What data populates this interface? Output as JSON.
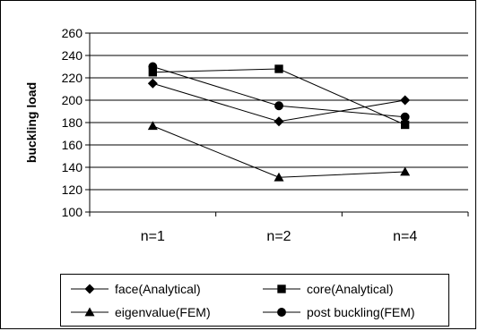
{
  "chart_data": {
    "type": "line",
    "categories": [
      "n=1",
      "n=2",
      "n=4"
    ],
    "ylabel": "buckling load",
    "xlabel": "",
    "ylim": [
      100,
      260
    ],
    "yticks": [
      100,
      120,
      140,
      160,
      180,
      200,
      220,
      240,
      260
    ],
    "grid": "horizontal",
    "legend_position": "bottom",
    "series": [
      {
        "name": "face(Analytical)",
        "marker": "diamond",
        "values": [
          215,
          181,
          200
        ]
      },
      {
        "name": "core(Analytical)",
        "marker": "square",
        "values": [
          225,
          228,
          178
        ]
      },
      {
        "name": "eigenvalue(FEM)",
        "marker": "triangle",
        "values": [
          177,
          131,
          136
        ]
      },
      {
        "name": "post buckling(FEM)",
        "marker": "circle",
        "values": [
          230,
          195,
          185
        ]
      }
    ],
    "colors": {
      "line": "#000000",
      "grid": "#000000",
      "background": "#ffffff"
    }
  }
}
